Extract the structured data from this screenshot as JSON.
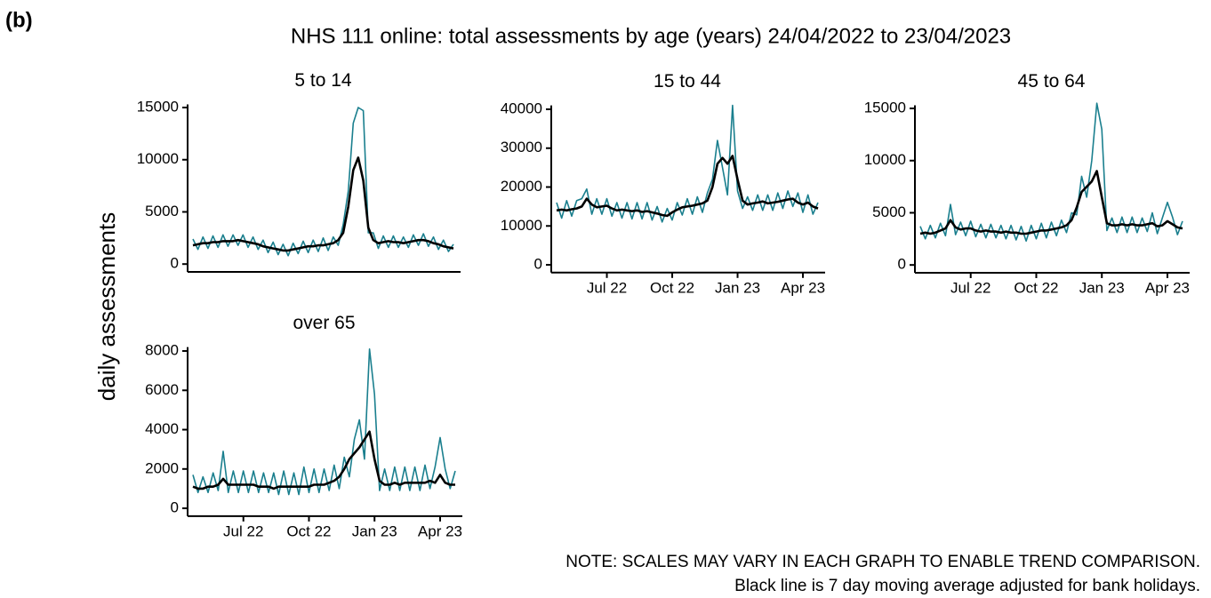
{
  "label": "(b)",
  "title": "NHS 111 online: total assessments by age (years) 24/04/2022 to 23/04/2023",
  "y_label": "daily assessments",
  "notes": [
    "NOTE: SCALES MAY VARY IN EACH GRAPH TO ENABLE TREND COMPARISON.",
    "Black line is 7 day moving average adjusted for bank holidays."
  ],
  "chart_data": [
    {
      "type": "line",
      "title": "5 to 14",
      "categories": [
        null,
        null,
        null,
        null,
        null,
        null,
        null,
        null,
        null,
        null,
        null,
        null,
        null,
        null,
        null,
        null,
        null,
        null,
        null,
        null,
        null,
        null,
        null,
        null,
        null,
        null,
        null,
        null,
        null,
        null,
        null,
        null,
        null,
        null,
        null,
        null,
        null,
        null,
        null,
        null,
        null,
        null,
        null,
        null,
        null,
        null,
        null,
        null,
        null,
        null,
        null,
        null,
        null
      ],
      "series": [
        {
          "color": "#1a7f8e",
          "values": [
            2400,
            1400,
            2600,
            1500,
            2700,
            1600,
            2800,
            1700,
            2800,
            1800,
            2800,
            1600,
            2600,
            1400,
            2300,
            1100,
            2100,
            900,
            1900,
            800,
            2000,
            1000,
            2200,
            1100,
            2300,
            1200,
            2500,
            1300,
            2600,
            1800,
            3800,
            7000,
            13500,
            15000,
            14700,
            3000,
            3000,
            1500,
            2700,
            1600,
            2700,
            1600,
            2600,
            1600,
            2800,
            1800,
            2900,
            1700,
            2600,
            1400,
            2300,
            1200,
            1900
          ]
        },
        {
          "color": "#000000",
          "values": [
            1800,
            1900,
            2000,
            2000,
            2100,
            2100,
            2200,
            2200,
            2200,
            2300,
            2200,
            2100,
            2000,
            1900,
            1700,
            1600,
            1500,
            1400,
            1300,
            1300,
            1400,
            1500,
            1600,
            1700,
            1700,
            1800,
            1800,
            1900,
            2000,
            2300,
            3000,
            5500,
            9000,
            10200,
            8000,
            3500,
            2300,
            2000,
            2100,
            2200,
            2100,
            2100,
            2000,
            2100,
            2200,
            2300,
            2300,
            2200,
            2000,
            1900,
            1700,
            1600,
            1500
          ]
        }
      ],
      "ylim": [
        -750,
        15300
      ],
      "yticks": [
        0,
        5000,
        10000,
        15000
      ]
    },
    {
      "type": "line",
      "title": "15 to 44",
      "categories": [
        null,
        null,
        null,
        null,
        null,
        null,
        null,
        null,
        null,
        null,
        "Jul 22",
        null,
        null,
        null,
        null,
        null,
        null,
        null,
        null,
        null,
        null,
        null,
        null,
        "Oct 22",
        null,
        null,
        null,
        null,
        null,
        null,
        null,
        null,
        null,
        null,
        null,
        null,
        "Jan 23",
        null,
        null,
        null,
        null,
        null,
        null,
        null,
        null,
        null,
        null,
        null,
        null,
        "Apr 23",
        null,
        null,
        null
      ],
      "series": [
        {
          "color": "#1a7f8e",
          "values": [
            16000,
            12000,
            16500,
            12500,
            16500,
            17000,
            19500,
            13000,
            17000,
            13000,
            17000,
            12500,
            16000,
            12000,
            16000,
            11800,
            16000,
            11800,
            16000,
            11500,
            15000,
            11000,
            14500,
            11500,
            16000,
            12800,
            17000,
            13000,
            17500,
            13500,
            18500,
            22000,
            32000,
            25000,
            18000,
            41000,
            19000,
            14500,
            17500,
            14000,
            18000,
            14000,
            18000,
            14000,
            18500,
            14500,
            19000,
            15000,
            18500,
            13500,
            18000,
            13000,
            16000
          ]
        },
        {
          "color": "#000000",
          "values": [
            14000,
            14200,
            14000,
            14300,
            14500,
            15000,
            17000,
            15500,
            14800,
            15000,
            15200,
            14500,
            14000,
            14200,
            14000,
            13800,
            14000,
            13600,
            13800,
            13500,
            13200,
            12800,
            12600,
            13500,
            14200,
            14800,
            15000,
            15200,
            15500,
            15800,
            16500,
            20000,
            26000,
            27500,
            26000,
            28000,
            22000,
            16500,
            15500,
            15800,
            16000,
            16300,
            15800,
            16000,
            16200,
            16500,
            16800,
            17000,
            16000,
            15500,
            16000,
            15000,
            14500
          ]
        }
      ],
      "ylim": [
        -2000,
        41000
      ],
      "yticks": [
        0,
        10000,
        20000,
        30000,
        40000
      ]
    },
    {
      "type": "line",
      "title": "45 to 64",
      "categories": [
        null,
        null,
        null,
        null,
        null,
        null,
        null,
        null,
        null,
        null,
        "Jul 22",
        null,
        null,
        null,
        null,
        null,
        null,
        null,
        null,
        null,
        null,
        null,
        null,
        "Oct 22",
        null,
        null,
        null,
        null,
        null,
        null,
        null,
        null,
        null,
        null,
        null,
        null,
        "Jan 23",
        null,
        null,
        null,
        null,
        null,
        null,
        null,
        null,
        null,
        null,
        null,
        null,
        "Apr 23",
        null,
        null,
        null
      ],
      "series": [
        {
          "color": "#1a7f8e",
          "values": [
            3700,
            2500,
            3800,
            2600,
            4000,
            2800,
            5800,
            2900,
            4100,
            2800,
            4200,
            2700,
            3900,
            2600,
            3900,
            2600,
            3800,
            2500,
            3800,
            2400,
            3700,
            2300,
            3800,
            2500,
            4000,
            2600,
            4100,
            2800,
            4300,
            3100,
            5000,
            4800,
            8500,
            6500,
            10000,
            15500,
            13000,
            3300,
            4500,
            3100,
            4600,
            3100,
            4600,
            3100,
            4500,
            3200,
            5000,
            3000,
            4500,
            6000,
            4600,
            2900,
            4200
          ]
        },
        {
          "color": "#000000",
          "values": [
            3000,
            3100,
            3000,
            3100,
            3300,
            3500,
            4300,
            3600,
            3400,
            3500,
            3500,
            3300,
            3200,
            3300,
            3200,
            3200,
            3100,
            3200,
            3100,
            3100,
            3000,
            3000,
            3100,
            3200,
            3300,
            3300,
            3400,
            3500,
            3600,
            3800,
            4300,
            5500,
            7000,
            7500,
            8000,
            9000,
            6500,
            4000,
            3800,
            3800,
            3900,
            3800,
            3900,
            3800,
            3800,
            3900,
            4000,
            3700,
            3800,
            4200,
            3900,
            3600,
            3500
          ]
        }
      ],
      "ylim": [
        -750,
        15300
      ],
      "yticks": [
        0,
        5000,
        10000,
        15000
      ]
    },
    {
      "type": "line",
      "title": "over 65",
      "categories": [
        null,
        null,
        null,
        null,
        null,
        null,
        null,
        null,
        null,
        null,
        "Jul 22",
        null,
        null,
        null,
        null,
        null,
        null,
        null,
        null,
        null,
        null,
        null,
        null,
        "Oct 22",
        null,
        null,
        null,
        null,
        null,
        null,
        null,
        null,
        null,
        null,
        null,
        null,
        "Jan 23",
        null,
        null,
        null,
        null,
        null,
        null,
        null,
        null,
        null,
        null,
        null,
        null,
        "Apr 23",
        null,
        null,
        null
      ],
      "series": [
        {
          "color": "#1a7f8e",
          "values": [
            1700,
            800,
            1600,
            800,
            1800,
            900,
            2900,
            800,
            1900,
            800,
            1900,
            800,
            1900,
            800,
            1800,
            800,
            1800,
            700,
            1900,
            700,
            1800,
            700,
            2100,
            800,
            2000,
            800,
            2000,
            900,
            2200,
            1000,
            2600,
            1600,
            3500,
            4500,
            2500,
            8100,
            5800,
            900,
            2000,
            900,
            2100,
            900,
            2100,
            900,
            2100,
            900,
            2200,
            1000,
            2100,
            3600,
            2000,
            1000,
            1900
          ]
        },
        {
          "color": "#000000",
          "values": [
            1100,
            1000,
            1000,
            1100,
            1100,
            1200,
            1500,
            1200,
            1200,
            1200,
            1200,
            1200,
            1200,
            1100,
            1100,
            1100,
            1000,
            1100,
            1100,
            1100,
            1100,
            1100,
            1100,
            1100,
            1200,
            1200,
            1200,
            1300,
            1400,
            1600,
            2000,
            2500,
            2800,
            3100,
            3500,
            3900,
            2500,
            1400,
            1200,
            1200,
            1300,
            1200,
            1300,
            1300,
            1300,
            1300,
            1300,
            1400,
            1300,
            1700,
            1300,
            1200,
            1200
          ]
        }
      ],
      "ylim": [
        -400,
        8200
      ],
      "yticks": [
        0,
        2000,
        4000,
        6000,
        8000
      ]
    }
  ]
}
